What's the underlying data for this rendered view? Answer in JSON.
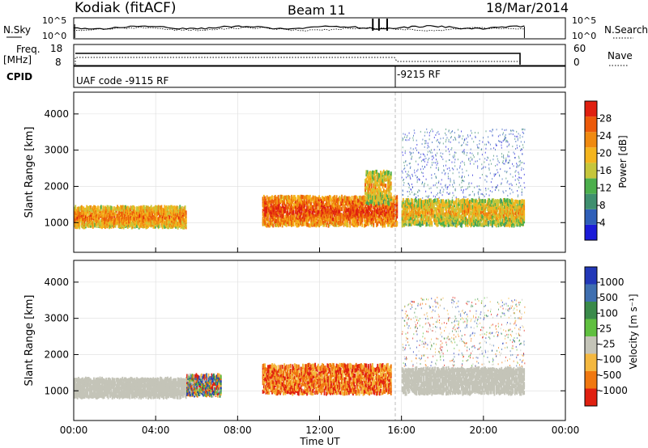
{
  "header": {
    "site": "Kodiak (fitACF)",
    "beam": "Beam 11",
    "date": "18/Mar/2014"
  },
  "noise_panel": {
    "left_label": "N.Sky",
    "right_label": "N.Search",
    "left_ticks": [
      "10^5",
      "10^0"
    ],
    "right_ticks": [
      "10^5",
      "10^0"
    ]
  },
  "freq_panel": {
    "left_label_1": "Freq.",
    "left_label_2": "[MHz]",
    "left_ticks": [
      "18",
      "8"
    ],
    "right_ticks": [
      "60",
      "0"
    ],
    "right_label": "Nave"
  },
  "cpid_panel": {
    "label": "CPID",
    "segments": [
      {
        "text": "UAF code -9115 RF",
        "start_hour": 0
      },
      {
        "text": "-9215 RF",
        "start_hour": 16
      }
    ]
  },
  "x_axis": {
    "label": "Time UT",
    "ticks": [
      "00:00",
      "04:00",
      "08:00",
      "12:00",
      "16:00",
      "20:00",
      "00:00"
    ]
  },
  "chart_data": [
    {
      "type": "heatmap",
      "title": "Power",
      "ylabel": "Slant Range [km]",
      "xlabel": "Time UT",
      "xlim": [
        0,
        24
      ],
      "ylim": [
        180,
        4600
      ],
      "yticks": [
        "1000",
        "2000",
        "3000",
        "4000"
      ],
      "colorbar": {
        "label": "Power [dB]",
        "ticks": [
          "4",
          "8",
          "12",
          "16",
          "20",
          "24",
          "28"
        ],
        "range": [
          0,
          30
        ],
        "colors": [
          "#1b1bd8",
          "#2f5fb8",
          "#3f8f6f",
          "#4caf4c",
          "#c6c63b",
          "#f4b51e",
          "#f08a10",
          "#ec5a0a",
          "#e02010"
        ]
      },
      "features": [
        {
          "hours": [
            0.0,
            5.5
          ],
          "range_km": [
            950,
            1500
          ],
          "level": "moderate-high"
        },
        {
          "hours": [
            9.2,
            15.8
          ],
          "range_km": [
            1000,
            1800
          ],
          "level": "high"
        },
        {
          "hours": [
            14.2,
            15.5
          ],
          "range_km": [
            1600,
            2500
          ],
          "level": "moderate"
        },
        {
          "hours": [
            16.0,
            22.0
          ],
          "range_km": [
            1000,
            1700
          ],
          "level": "moderate"
        }
      ]
    },
    {
      "type": "heatmap",
      "title": "Velocity",
      "ylabel": "Slant Range [km]",
      "xlabel": "Time UT",
      "xlim": [
        0,
        24
      ],
      "ylim": [
        180,
        4600
      ],
      "yticks": [
        "1000",
        "2000",
        "3000",
        "4000"
      ],
      "colorbar": {
        "label": "Velocity [m s⁻¹]",
        "ticks": [
          "1000",
          "500",
          "100",
          "25",
          "-25",
          "-100",
          "-500",
          "-1000"
        ],
        "colors": [
          "#2238b8",
          "#3f6fb0",
          "#3a8a4a",
          "#60c040",
          "#c4c4b8",
          "#f4b840",
          "#f07810",
          "#e02010"
        ]
      },
      "features": [
        {
          "hours": [
            0.0,
            5.5
          ],
          "range_km": [
            900,
            1400
          ],
          "level": "ground scatter"
        },
        {
          "hours": [
            5.5,
            7.2
          ],
          "range_km": [
            950,
            1500
          ],
          "level": "positive/negative mixed"
        },
        {
          "hours": [
            9.2,
            15.5
          ],
          "range_km": [
            1000,
            1800
          ],
          "level": "negative (-100 to -500)"
        },
        {
          "hours": [
            16.0,
            22.0
          ],
          "range_km": [
            1000,
            1700
          ],
          "level": "ground scatter"
        }
      ]
    }
  ],
  "colors": {
    "axis": "#000000",
    "grid": "#d0d0d0"
  }
}
